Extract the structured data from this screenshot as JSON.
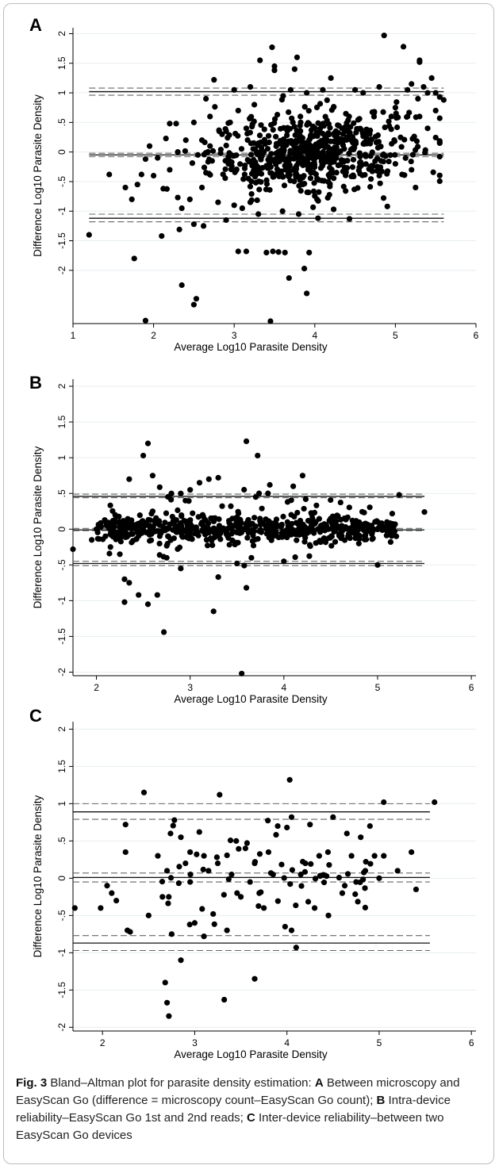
{
  "figure": {
    "caption_label": "Fig. 3",
    "caption_parts": [
      {
        "text": "  Bland–Altman plot for parasite density estimation: ",
        "bold": false
      },
      {
        "text": "A",
        "bold": true
      },
      {
        "text": " Between microscopy and EasyScan Go (difference = microscopy count–EasyScan Go count); ",
        "bold": false
      },
      {
        "text": "B",
        "bold": true
      },
      {
        "text": " Intra-device reliability–EasyScan Go 1st and 2nd reads; ",
        "bold": false
      },
      {
        "text": "C",
        "bold": true
      },
      {
        "text": " Inter-device reliability–between two EasyScan Go devices",
        "bold": false
      }
    ]
  },
  "chart_data": [
    {
      "panel": "A",
      "type": "scatter",
      "xlabel": "Average Log10 Parasite Density",
      "ylabel": "Difference Log10 Parasite Density",
      "xlim": [
        1,
        6
      ],
      "ylim": [
        -2.9,
        2.1
      ],
      "xticks": [
        "1",
        "2",
        "3",
        "4",
        "5",
        "6"
      ],
      "yticks": [
        "2",
        "1.5",
        "1",
        ".5",
        "0",
        "-.5",
        "-1",
        "-1.5",
        "-2"
      ],
      "grid": true,
      "reference_lines": {
        "mean": -0.05,
        "mean_ci": [
          -0.08,
          -0.02
        ],
        "upper_loa": 1.02,
        "upper_ci": [
          0.96,
          1.08
        ],
        "lower_loa": -1.12,
        "lower_ci": [
          -1.18,
          -1.05
        ],
        "x_range": [
          1.2,
          5.6
        ]
      },
      "points": [
        [
          1.2,
          -1.4
        ],
        [
          1.45,
          -0.38
        ],
        [
          1.73,
          -0.8
        ],
        [
          1.76,
          -1.8
        ],
        [
          1.9,
          -2.85
        ],
        [
          2.35,
          -2.25
        ],
        [
          2.53,
          -2.48
        ],
        [
          2.5,
          -2.58
        ],
        [
          3.32,
          1.55
        ],
        [
          3.47,
          1.77
        ],
        [
          3.5,
          1.45
        ],
        [
          3.5,
          1.38
        ],
        [
          3.78,
          1.6
        ],
        [
          3.75,
          1.4
        ],
        [
          4.86,
          1.97
        ],
        [
          5.1,
          1.78
        ],
        [
          5.3,
          1.55
        ],
        [
          5.3,
          1.52
        ],
        [
          3.55,
          -1.69
        ],
        [
          3.63,
          -1.7
        ],
        [
          3.4,
          -1.7
        ],
        [
          3.48,
          -1.68
        ],
        [
          3.68,
          -2.13
        ],
        [
          3.87,
          -1.97
        ],
        [
          3.93,
          -1.7
        ],
        [
          3.9,
          -2.39
        ],
        [
          3.45,
          -2.86
        ],
        [
          3.05,
          -1.68
        ],
        [
          3.15,
          -1.68
        ],
        [
          2.1,
          -1.42
        ],
        [
          2.32,
          -1.31
        ],
        [
          2.5,
          -1.22
        ],
        [
          2.62,
          -1.25
        ],
        [
          2.75,
          1.22
        ],
        [
          4.04,
          -1.12
        ],
        [
          4.43,
          -1.13
        ],
        [
          4.9,
          -0.92
        ],
        [
          5.25,
          -0.6
        ],
        [
          5.6,
          0.88
        ],
        [
          5.55,
          0.93
        ],
        [
          5.28,
          0.9
        ],
        [
          2.2,
          0.48
        ],
        [
          2.28,
          0.48
        ],
        [
          1.95,
          0.1
        ],
        [
          2.05,
          -0.1
        ],
        [
          2.2,
          -0.3
        ],
        [
          2.0,
          -0.4
        ],
        [
          1.85,
          -0.38
        ],
        [
          2.12,
          -0.62
        ],
        [
          2.3,
          -0.77
        ],
        [
          2.45,
          -0.8
        ],
        [
          2.35,
          -0.95
        ],
        [
          1.8,
          -0.55
        ],
        [
          1.65,
          -0.6
        ],
        [
          4.2,
          1.25
        ],
        [
          4.1,
          1.05
        ],
        [
          3.9,
          1.0
        ],
        [
          3.7,
          1.05
        ],
        [
          3.2,
          1.1
        ],
        [
          3.0,
          1.05
        ],
        [
          2.65,
          0.9
        ],
        [
          2.7,
          0.6
        ],
        [
          2.5,
          0.5
        ],
        [
          4.5,
          1.05
        ],
        [
          4.6,
          1.0
        ],
        [
          4.8,
          1.1
        ],
        [
          5.2,
          1.15
        ],
        [
          5.15,
          1.05
        ],
        [
          5.4,
          1.0
        ],
        [
          5.5,
          1.0
        ],
        [
          5.45,
          1.25
        ],
        [
          5.35,
          1.1
        ],
        [
          3.3,
          -1.05
        ],
        [
          3.1,
          -0.95
        ],
        [
          3.0,
          -0.9
        ],
        [
          2.8,
          -0.85
        ],
        [
          2.9,
          -1.15
        ],
        [
          3.6,
          -1.0
        ],
        [
          3.8,
          -1.05
        ],
        [
          3.2,
          -0.85
        ],
        [
          4.8,
          -0.4
        ],
        [
          5.0,
          -0.2
        ],
        [
          5.2,
          -0.3
        ],
        [
          5.4,
          0.4
        ],
        [
          5.5,
          0.7
        ],
        [
          5.3,
          0.6
        ],
        [
          5.0,
          0.75
        ],
        [
          5.15,
          0.6
        ],
        [
          4.95,
          0.6
        ],
        [
          2.6,
          0.2
        ],
        [
          2.7,
          0.1
        ],
        [
          2.55,
          -0.05
        ],
        [
          2.3,
          0.0
        ],
        [
          2.4,
          0.2
        ],
        [
          2.6,
          -0.6
        ],
        [
          2.65,
          -0.35
        ],
        [
          2.85,
          0.3
        ],
        [
          2.95,
          0.5
        ],
        [
          3.05,
          0.7
        ],
        [
          3.25,
          0.8
        ],
        [
          3.15,
          0.4
        ]
      ],
      "point_cloud_note": "plus a dense cloud of points centred near x=3.9, y=0"
    },
    {
      "panel": "B",
      "type": "scatter",
      "xlabel": "Average Log10 Parasite Density",
      "ylabel": "Difference Log10 Parasite Density",
      "xlim": [
        1.75,
        6.05
      ],
      "ylim": [
        -2.05,
        2.1
      ],
      "xticks": [
        "2",
        "3",
        "4",
        "5",
        "6"
      ],
      "yticks": [
        "2",
        "1.5",
        "1",
        ".5",
        "0",
        "-.5",
        "-1",
        "-1.5",
        "-2"
      ],
      "grid": true,
      "reference_lines": {
        "mean": -0.01,
        "mean_ci": [
          -0.02,
          0.01
        ],
        "upper_loa": 0.46,
        "upper_ci": [
          0.44,
          0.49
        ],
        "lower_loa": -0.48,
        "lower_ci": [
          -0.51,
          -0.45
        ],
        "x_range": [
          1.75,
          5.5
        ]
      },
      "points": [
        [
          1.75,
          -0.28
        ],
        [
          2.55,
          1.2
        ],
        [
          2.5,
          1.03
        ],
        [
          3.6,
          1.23
        ],
        [
          3.72,
          1.03
        ],
        [
          2.35,
          0.7
        ],
        [
          2.6,
          0.75
        ],
        [
          4.2,
          0.75
        ],
        [
          4.1,
          0.6
        ],
        [
          3.3,
          0.72
        ],
        [
          3.2,
          0.7
        ],
        [
          3.1,
          0.65
        ],
        [
          3.0,
          0.55
        ],
        [
          2.9,
          0.5
        ],
        [
          3.85,
          0.62
        ],
        [
          2.3,
          -1.02
        ],
        [
          2.55,
          -1.05
        ],
        [
          2.72,
          -1.44
        ],
        [
          3.25,
          -1.15
        ],
        [
          3.55,
          -2.02
        ],
        [
          3.6,
          -0.82
        ],
        [
          3.3,
          -0.67
        ],
        [
          2.65,
          -0.92
        ],
        [
          2.45,
          -0.92
        ],
        [
          2.3,
          -0.7
        ],
        [
          2.35,
          -0.75
        ],
        [
          2.9,
          -0.55
        ],
        [
          5.23,
          0.48
        ],
        [
          5.5,
          0.24
        ],
        [
          5.0,
          -0.5
        ],
        [
          3.5,
          -0.48
        ],
        [
          4.0,
          -0.45
        ],
        [
          2.95,
          0.4
        ],
        [
          2.8,
          0.5
        ],
        [
          2.6,
          0.25
        ],
        [
          2.2,
          0.2
        ],
        [
          2.1,
          0.1
        ],
        [
          2.0,
          0.0
        ],
        [
          1.95,
          -0.15
        ],
        [
          2.15,
          -0.25
        ],
        [
          2.25,
          -0.35
        ],
        [
          2.75,
          -0.4
        ],
        [
          3.7,
          0.45
        ],
        [
          4.3,
          0.2
        ],
        [
          4.5,
          0.15
        ],
        [
          4.8,
          -0.2
        ],
        [
          5.1,
          0.1
        ],
        [
          5.2,
          -0.1
        ]
      ],
      "point_cloud_note": "plus a dense band of points along y≈0 between x=2 and x=5.2"
    },
    {
      "panel": "C",
      "type": "scatter",
      "xlabel": "Average Log10 Parasite Density",
      "ylabel": "Difference Log10 Parasite Density",
      "xlim": [
        1.68,
        6.05
      ],
      "ylim": [
        -2.05,
        2.1
      ],
      "xticks": [
        "2",
        "3",
        "4",
        "5",
        "6"
      ],
      "yticks": [
        "2",
        "1.5",
        "1",
        ".5",
        "0",
        "-.5",
        "-1",
        "-1.5",
        "-2"
      ],
      "grid": true,
      "reference_lines": {
        "mean": 0.01,
        "mean_ci": [
          -0.05,
          0.07
        ],
        "upper_loa": 0.89,
        "upper_ci": [
          0.79,
          1.0
        ],
        "lower_loa": -0.87,
        "lower_ci": [
          -0.97,
          -0.77
        ],
        "x_range": [
          1.68,
          5.55
        ]
      },
      "points": [
        [
          1.7,
          -0.4
        ],
        [
          2.45,
          1.15
        ],
        [
          3.27,
          1.12
        ],
        [
          4.03,
          1.32
        ],
        [
          5.05,
          1.02
        ],
        [
          5.6,
          1.02
        ],
        [
          2.68,
          -1.4
        ],
        [
          2.7,
          -1.67
        ],
        [
          2.72,
          -1.85
        ],
        [
          2.85,
          -1.1
        ],
        [
          3.32,
          -1.63
        ],
        [
          3.65,
          -1.35
        ],
        [
          2.25,
          0.72
        ],
        [
          2.25,
          0.35
        ],
        [
          2.05,
          -0.1
        ],
        [
          2.1,
          -0.2
        ],
        [
          2.15,
          -0.3
        ],
        [
          1.98,
          -0.4
        ],
        [
          2.27,
          -0.7
        ],
        [
          2.3,
          -0.72
        ],
        [
          2.5,
          -0.5
        ],
        [
          2.75,
          -0.75
        ],
        [
          2.78,
          0.78
        ],
        [
          2.85,
          0.55
        ],
        [
          2.95,
          0.35
        ],
        [
          3.05,
          0.62
        ],
        [
          3.15,
          0.1
        ],
        [
          3.1,
          -0.78
        ],
        [
          3.0,
          -0.6
        ],
        [
          3.2,
          -0.48
        ],
        [
          3.35,
          -0.7
        ],
        [
          3.45,
          0.5
        ],
        [
          3.55,
          0.4
        ],
        [
          3.65,
          0.2
        ],
        [
          3.7,
          -0.2
        ],
        [
          3.75,
          -0.4
        ],
        [
          3.9,
          0.7
        ],
        [
          4.0,
          0.68
        ],
        [
          3.98,
          -0.65
        ],
        [
          4.05,
          -0.7
        ],
        [
          4.1,
          -0.93
        ],
        [
          4.05,
          0.82
        ],
        [
          4.25,
          0.72
        ],
        [
          4.5,
          0.82
        ],
        [
          4.65,
          0.6
        ],
        [
          4.7,
          0.3
        ],
        [
          4.8,
          0.55
        ],
        [
          4.9,
          0.7
        ],
        [
          4.95,
          0.3
        ],
        [
          5.0,
          0.0
        ],
        [
          5.2,
          0.1
        ],
        [
          5.4,
          -0.15
        ],
        [
          5.35,
          0.35
        ],
        [
          4.6,
          -0.2
        ],
        [
          4.45,
          -0.5
        ],
        [
          4.3,
          -0.4
        ],
        [
          4.2,
          0.2
        ],
        [
          3.85,
          0.05
        ],
        [
          3.6,
          -0.05
        ],
        [
          3.4,
          0.05
        ],
        [
          3.25,
          0.2
        ],
        [
          3.1,
          0.3
        ],
        [
          2.9,
          0.2
        ],
        [
          2.7,
          0.1
        ],
        [
          2.6,
          0.3
        ],
        [
          2.65,
          -0.25
        ],
        [
          2.95,
          -0.05
        ],
        [
          3.5,
          -0.25
        ],
        [
          3.8,
          0.35
        ],
        [
          4.15,
          0.05
        ],
        [
          4.35,
          0.3
        ],
        [
          4.75,
          -0.05
        ],
        [
          4.85,
          0.1
        ],
        [
          5.05,
          0.3
        ]
      ],
      "point_cloud_note": "sparser cloud; points cluster around y=0 between x=2.5 and x=5"
    }
  ]
}
